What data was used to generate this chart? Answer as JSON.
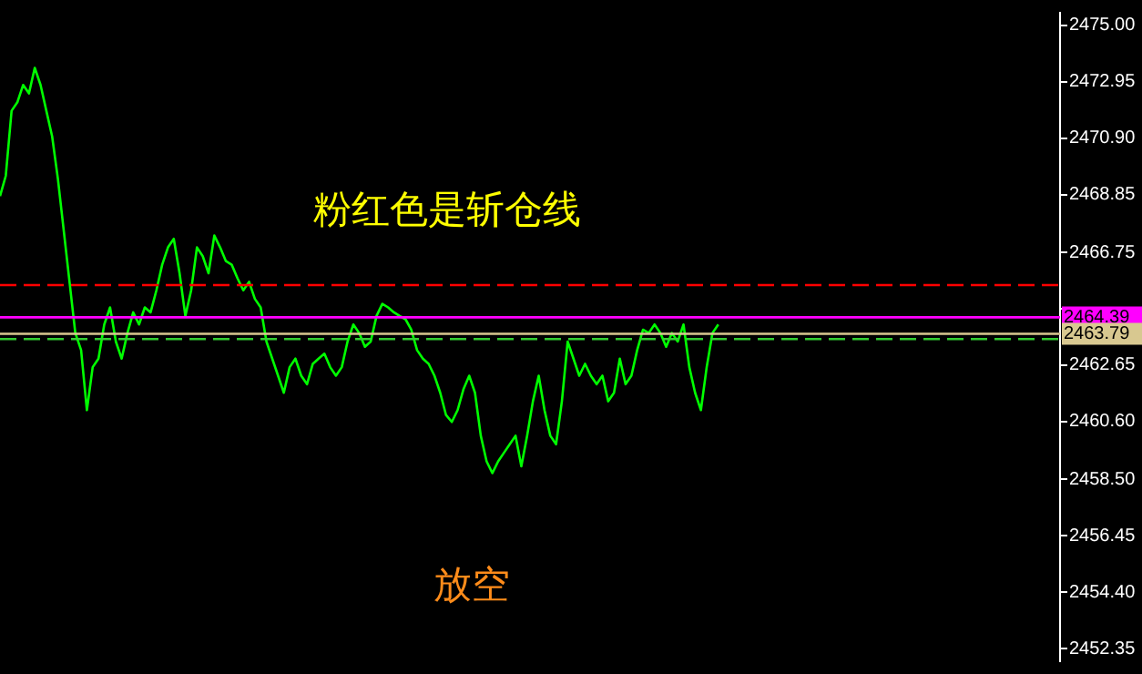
{
  "chart_data": {
    "type": "line",
    "categories": [
      null,
      null,
      null,
      null,
      null,
      null,
      null,
      null,
      null,
      null,
      null,
      null,
      null,
      null,
      null,
      null,
      null,
      null,
      null,
      null,
      null,
      null,
      null,
      null,
      null,
      null,
      null,
      null,
      null,
      null,
      null,
      null,
      null,
      null,
      null,
      null,
      null,
      null,
      null,
      null,
      null,
      null,
      null,
      null,
      null,
      null,
      null,
      null,
      null,
      null,
      null,
      null,
      null,
      null,
      null,
      null,
      null,
      null,
      null,
      null,
      null,
      null,
      null,
      null,
      null,
      null,
      null,
      null,
      null,
      null,
      null,
      null,
      null,
      null,
      null,
      null,
      null,
      null,
      null,
      null,
      null,
      null,
      null,
      null,
      null,
      null,
      null,
      null,
      null,
      null,
      null,
      null,
      null,
      null,
      null,
      null,
      null,
      null,
      null,
      null,
      null,
      null,
      null,
      null,
      null,
      null,
      null,
      null,
      null,
      null,
      null,
      null,
      null,
      null,
      null,
      null,
      null,
      null,
      null,
      null,
      null,
      null,
      null,
      null,
      null,
      null,
      null,
      null,
      null,
      null,
      null,
      null,
      null,
      null,
      null,
      null,
      null,
      null,
      null,
      null,
      null,
      null,
      null,
      null,
      null,
      null,
      null,
      null,
      null,
      null,
      null,
      null,
      null,
      null,
      null,
      null,
      null,
      null,
      null,
      null,
      null,
      null,
      null,
      null,
      null,
      null,
      null,
      null,
      null,
      null,
      null,
      null,
      null,
      null,
      null,
      null,
      null,
      null,
      null,
      null,
      null,
      null,
      null,
      null
    ],
    "series": [
      {
        "color": "#00ff00",
        "values": [
          2468.79,
          2469.53,
          2471.89,
          2472.2,
          2472.83,
          2472.52,
          2473.45,
          2472.83,
          2471.89,
          2470.96,
          2469.41,
          2467.55,
          2465.68,
          2463.82,
          2463.2,
          2461.02,
          2462.58,
          2462.89,
          2464.13,
          2464.75,
          2463.51,
          2462.89,
          2463.82,
          2464.57,
          2464.13,
          2464.75,
          2464.57,
          2465.37,
          2466.3,
          2466.93,
          2467.24,
          2465.99,
          2464.44,
          2465.37,
          2466.93,
          2466.61,
          2465.99,
          2467.36,
          2466.93,
          2466.43,
          2466.3,
          2465.81,
          2465.37,
          2465.68,
          2465.06,
          2464.75,
          2463.51,
          2462.89,
          2462.27,
          2461.65,
          2462.58,
          2462.89,
          2462.27,
          2461.96,
          2462.7,
          2462.89,
          2463.07,
          2462.58,
          2462.27,
          2462.58,
          2463.51,
          2464.13,
          2463.82,
          2463.32,
          2463.51,
          2464.44,
          2464.88,
          2464.75,
          2464.57,
          2464.44,
          2464.32,
          2463.94,
          2463.2,
          2462.89,
          2462.7,
          2462.27,
          2461.65,
          2460.84,
          2460.59,
          2461.02,
          2461.77,
          2462.27,
          2461.65,
          2460.09,
          2459.16,
          2458.73,
          2459.16,
          2459.47,
          2459.78,
          2460.09,
          2458.98,
          2460.09,
          2461.34,
          2462.27,
          2461.02,
          2460.09,
          2459.78,
          2461.34,
          2463.51,
          2462.89,
          2462.27,
          2462.7,
          2462.27,
          2461.96,
          2462.27,
          2461.34,
          2461.65,
          2462.89,
          2461.96,
          2462.27,
          2463.2,
          2463.94,
          2463.82,
          2464.13,
          2463.82,
          2463.32,
          2463.82,
          2463.51,
          2464.13,
          2462.58,
          2461.65,
          2461.02,
          2462.58,
          2463.82,
          2464.13,
          null,
          null,
          null,
          null,
          null,
          null,
          null,
          null,
          null,
          null,
          null,
          null,
          null,
          null,
          null,
          null,
          null,
          null,
          null,
          null,
          null,
          null,
          null,
          null,
          null,
          null,
          null,
          null,
          null,
          null,
          null,
          null,
          null,
          null,
          null,
          null,
          null,
          null,
          null,
          null,
          null,
          null,
          null,
          null,
          null,
          null,
          null,
          null,
          null,
          null,
          null,
          null,
          null,
          null,
          null,
          null,
          null,
          null,
          null
        ]
      }
    ],
    "ylim": [
      2451.9,
      2475.45
    ],
    "yticks": [
      {
        "value": 2475.0,
        "label": "2475.00"
      },
      {
        "value": 2472.95,
        "label": "2472.95"
      },
      {
        "value": 2470.9,
        "label": "2470.90"
      },
      {
        "value": 2468.85,
        "label": "2468.85"
      },
      {
        "value": 2466.75,
        "label": "2466.75"
      },
      {
        "value": 2464.7,
        "label": null
      },
      {
        "value": 2462.65,
        "label": "2462.65"
      },
      {
        "value": 2460.6,
        "label": "2460.60"
      },
      {
        "value": 2458.5,
        "label": "2458.50"
      },
      {
        "value": 2456.45,
        "label": "2456.45"
      },
      {
        "value": 2454.4,
        "label": "2454.40"
      },
      {
        "value": 2452.35,
        "label": "2452.35"
      }
    ],
    "ref_lines": [
      {
        "axis": "y",
        "value": 2465.56,
        "color": "#ff0000",
        "line_style": "dashed"
      },
      {
        "axis": "y",
        "value": 2464.39,
        "label": "2464.39",
        "color": "#ff00ff"
      },
      {
        "axis": "y",
        "value": 2463.79,
        "label": "2463.79",
        "color": "#d8c890"
      },
      {
        "axis": "y",
        "value": 2463.6,
        "color": "#32cd32",
        "line_style": "dashed"
      }
    ],
    "annotations": [
      "粉红色是斩仓线",
      "放空"
    ],
    "grid": false,
    "legend": false,
    "tick_labels": "y",
    "marker": "none",
    "line_style": "solid"
  }
}
